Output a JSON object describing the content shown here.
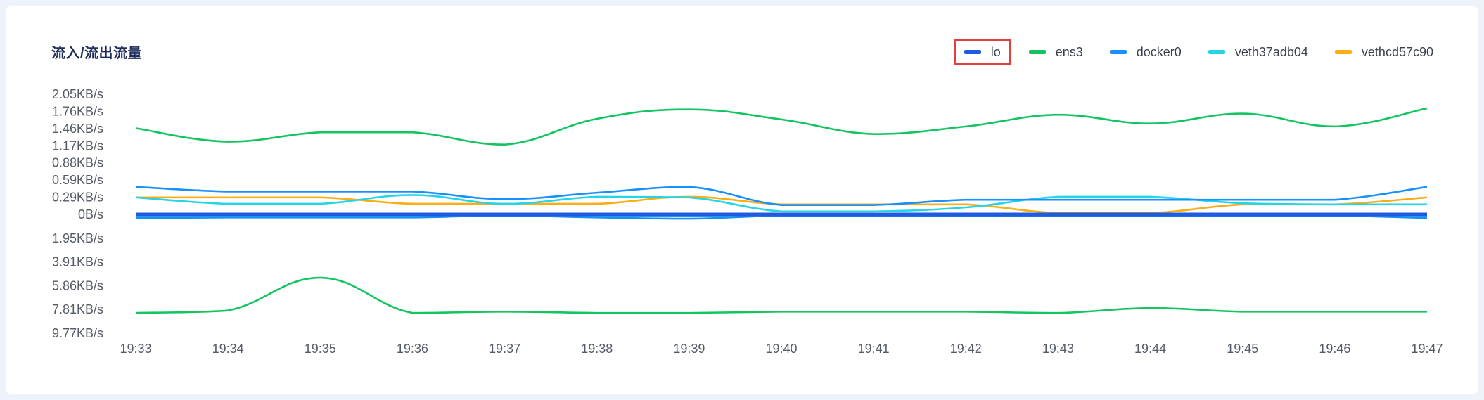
{
  "title": "流入/流出流量",
  "legend": {
    "selected": "lo"
  },
  "chart_data": {
    "type": "line",
    "title": "流入/流出流量",
    "x": [
      "19:33",
      "19:34",
      "19:35",
      "19:36",
      "19:37",
      "19:38",
      "19:39",
      "19:40",
      "19:41",
      "19:42",
      "19:43",
      "19:44",
      "19:45",
      "19:46",
      "19:47"
    ],
    "y_ticks_upper": [
      "2.05KB/s",
      "1.76KB/s",
      "1.46KB/s",
      "1.17KB/s",
      "0.88KB/s",
      "0.59KB/s",
      "0.29KB/s",
      "0B/s"
    ],
    "y_ticks_lower": [
      "1.95KB/s",
      "3.91KB/s",
      "5.86KB/s",
      "7.81KB/s",
      "9.77KB/s"
    ],
    "ylim_in": [
      0,
      2.05
    ],
    "ylim_out": [
      0,
      9.77
    ],
    "unit": "KB/s",
    "series": [
      {
        "name": "lo",
        "color": "#1f5be0",
        "inbound": [
          0.0,
          0.0,
          0.0,
          0.0,
          0.0,
          0.0,
          0.0,
          0.0,
          0.0,
          0.0,
          0.0,
          0.0,
          0.0,
          0.0,
          0.0
        ],
        "outbound": [
          0.0,
          0.0,
          0.0,
          0.0,
          0.0,
          0.0,
          0.0,
          0.0,
          0.0,
          0.0,
          0.0,
          0.0,
          0.0,
          0.0,
          0.0
        ]
      },
      {
        "name": "ens3",
        "color": "#13c460",
        "inbound": [
          1.47,
          1.24,
          1.4,
          1.4,
          1.19,
          1.63,
          1.79,
          1.62,
          1.37,
          1.5,
          1.7,
          1.55,
          1.72,
          1.5,
          1.81
        ],
        "outbound": [
          8.1,
          7.9,
          5.2,
          8.1,
          8.0,
          8.1,
          8.1,
          8.0,
          8.0,
          8.0,
          8.1,
          7.7,
          8.0,
          8.0,
          8.0
        ]
      },
      {
        "name": "docker0",
        "color": "#1890ff",
        "inbound": [
          0.47,
          0.39,
          0.39,
          0.39,
          0.26,
          0.37,
          0.47,
          0.16,
          0.16,
          0.25,
          0.25,
          0.25,
          0.25,
          0.25,
          0.47
        ],
        "outbound": [
          0.3,
          0.25,
          0.25,
          0.25,
          0.1,
          0.25,
          0.35,
          0.1,
          0.1,
          0.1,
          0.1,
          0.1,
          0.1,
          0.1,
          0.3
        ]
      },
      {
        "name": "veth37adb04",
        "color": "#26d4e8",
        "inbound": [
          0.29,
          0.18,
          0.18,
          0.33,
          0.18,
          0.3,
          0.29,
          0.05,
          0.05,
          0.12,
          0.3,
          0.3,
          0.19,
          0.17,
          0.17
        ],
        "outbound": [
          0.15,
          0.1,
          0.1,
          0.15,
          0.1,
          0.15,
          0.15,
          0.05,
          0.05,
          0.05,
          0.05,
          0.05,
          0.05,
          0.05,
          0.15
        ]
      },
      {
        "name": "vethcd57c90",
        "color": "#faad14",
        "inbound": [
          0.29,
          0.29,
          0.29,
          0.18,
          0.18,
          0.18,
          0.3,
          0.17,
          0.17,
          0.17,
          0.02,
          0.02,
          0.17,
          0.17,
          0.29
        ],
        "outbound": [
          0.1,
          0.1,
          0.1,
          0.1,
          0.1,
          0.1,
          0.1,
          0.05,
          0.05,
          0.05,
          0.05,
          0.05,
          0.05,
          0.05,
          0.1
        ]
      }
    ]
  }
}
